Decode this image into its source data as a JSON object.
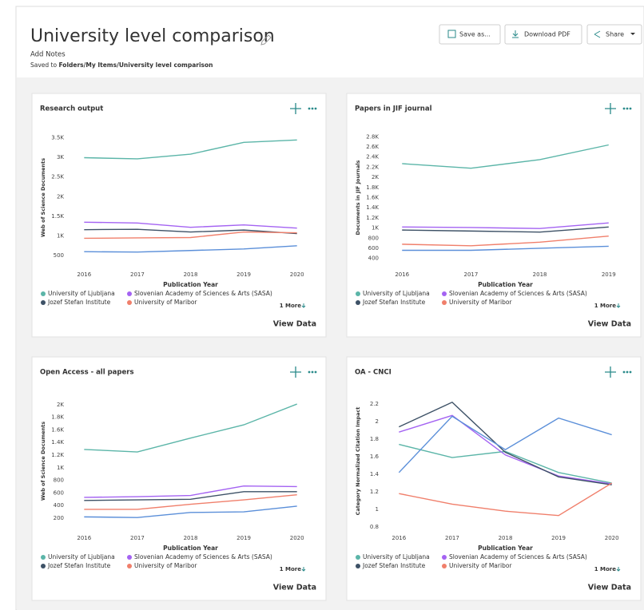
{
  "header": {
    "title": "University level comparison",
    "add_notes": "Add Notes",
    "saved_label": "Saved to",
    "saved_path": "Folders/My Items/University level comparison"
  },
  "buttons": [
    "Save as...",
    "Download PDF",
    "Share"
  ],
  "chart_data": [
    {
      "type": "line",
      "title": "Research output",
      "ylabel": "Web of Science Documents",
      "xlabel": "Publication Year",
      "x": [
        2016,
        2017,
        2018,
        2019,
        2020
      ],
      "xlim": [
        2015.8,
        2020.2
      ],
      "xticks": [
        2016,
        2017,
        2018,
        2019,
        2020
      ],
      "ylim": [
        300,
        3650
      ],
      "yticks": [
        500,
        {
          "value": 1000,
          "label": "1K"
        },
        {
          "value": 1500,
          "label": "1.5K"
        },
        {
          "value": 2000,
          "label": "2K"
        },
        {
          "value": 2500,
          "label": "2.5K"
        },
        {
          "value": 3000,
          "label": "3K"
        },
        {
          "value": 3500,
          "label": "3.5K"
        }
      ],
      "series": [
        {
          "name": "University of Ljubljana",
          "color": "#5bb5a8",
          "values": [
            2990,
            2960,
            3080,
            3380,
            3440
          ]
        },
        {
          "name": "Slovenian Academy of Sciences & Arts (SASA)",
          "color": "#a463f2",
          "values": [
            1350,
            1330,
            1220,
            1280,
            1200
          ]
        },
        {
          "name": "Jozef Stefan Institute",
          "color": "#3d5166",
          "values": [
            1160,
            1170,
            1100,
            1150,
            1060
          ]
        },
        {
          "name": "University of Maribor",
          "color": "#f07f6b",
          "values": [
            940,
            950,
            960,
            1100,
            1080
          ]
        },
        {
          "color": "#5b8fd9",
          "values": [
            600,
            590,
            630,
            670,
            750
          ]
        }
      ],
      "more_link": "1 More",
      "action": "View Data"
    },
    {
      "type": "line",
      "title": "Papers in JIF journal",
      "ylabel": "Documents in JIF Journals",
      "xlabel": "Publication Year",
      "x": [
        2016,
        2017,
        2018,
        2019
      ],
      "xlim": [
        2015.8,
        2019.2
      ],
      "xticks": [
        2016,
        2017,
        2018,
        2019
      ],
      "ylim": [
        300,
        2900
      ],
      "yticks": [
        400,
        600,
        800,
        {
          "value": 1000,
          "label": "1K"
        },
        {
          "value": 1200,
          "label": "1.2K"
        },
        {
          "value": 1400,
          "label": "1.4K"
        },
        {
          "value": 1600,
          "label": "1.6K"
        },
        {
          "value": 1800,
          "label": "1.8K"
        },
        {
          "value": 2000,
          "label": "2K"
        },
        {
          "value": 2200,
          "label": "2.2K"
        },
        {
          "value": 2400,
          "label": "2.4K"
        },
        {
          "value": 2600,
          "label": "2.6K"
        },
        {
          "value": 2800,
          "label": "2.8K"
        }
      ],
      "series": [
        {
          "name": "University of Ljubljana",
          "color": "#5bb5a8",
          "values": [
            2270,
            2180,
            2350,
            2640
          ]
        },
        {
          "name": "Slovenian Academy of Sciences & Arts (SASA)",
          "color": "#a463f2",
          "values": [
            1020,
            1010,
            990,
            1100
          ]
        },
        {
          "name": "Jozef Stefan Institute",
          "color": "#3d5166",
          "values": [
            960,
            940,
            920,
            1020
          ]
        },
        {
          "name": "University of Maribor",
          "color": "#f07f6b",
          "values": [
            680,
            650,
            720,
            840
          ]
        },
        {
          "color": "#5b8fd9",
          "values": [
            560,
            560,
            600,
            640
          ]
        }
      ],
      "more_link": "1 More",
      "action": "View Data"
    },
    {
      "type": "line",
      "title": "Open Access - all papers",
      "ylabel": "Web of Science Documents",
      "xlabel": "Publication Year",
      "x": [
        2016,
        2017,
        2018,
        2019,
        2020
      ],
      "xlim": [
        2015.8,
        2020.2
      ],
      "xticks": [
        2016,
        2017,
        2018,
        2019,
        2020
      ],
      "ylim": [
        60,
        2150
      ],
      "yticks": [
        200,
        400,
        600,
        800,
        {
          "value": 1000,
          "label": "1K"
        },
        {
          "value": 1200,
          "label": "1.2K"
        },
        {
          "value": 1400,
          "label": "1.4K"
        },
        {
          "value": 1600,
          "label": "1.6K"
        },
        {
          "value": 1800,
          "label": "1.8K"
        },
        {
          "value": 2000,
          "label": "2K"
        }
      ],
      "series": [
        {
          "name": "University of Ljubljana",
          "color": "#5bb5a8",
          "values": [
            1290,
            1250,
            1470,
            1680,
            2010
          ]
        },
        {
          "name": "Slovenian Academy of Sciences & Arts (SASA)",
          "color": "#a463f2",
          "values": [
            530,
            540,
            560,
            710,
            700
          ]
        },
        {
          "name": "Jozef Stefan Institute",
          "color": "#3d5166",
          "values": [
            480,
            490,
            500,
            620,
            620
          ]
        },
        {
          "name": "University of Maribor",
          "color": "#f07f6b",
          "values": [
            340,
            340,
            420,
            490,
            570
          ]
        },
        {
          "color": "#5b8fd9",
          "values": [
            220,
            210,
            290,
            300,
            390
          ]
        }
      ],
      "more_link": "1 More",
      "action": "View Data"
    },
    {
      "type": "line",
      "title": "OA - CNCI",
      "ylabel": "Category Normalized Citation Impact",
      "xlabel": "Publication Year",
      "x": [
        2016,
        2017,
        2018,
        2019,
        2020
      ],
      "xlim": [
        2015.8,
        2020.2
      ],
      "xticks": [
        2016,
        2017,
        2018,
        2019,
        2020
      ],
      "ylim": [
        0.8,
        2.3
      ],
      "yticks": [
        0.8,
        1,
        1.2,
        1.4,
        1.6,
        1.8,
        2,
        2.2
      ],
      "series": [
        {
          "name": "University of Ljubljana",
          "color": "#5bb5a8",
          "values": [
            1.74,
            1.59,
            1.66,
            1.42,
            1.3
          ]
        },
        {
          "name": "Slovenian Academy of Sciences & Arts (SASA)",
          "color": "#a463f2",
          "values": [
            1.88,
            2.07,
            1.62,
            1.38,
            1.29
          ]
        },
        {
          "name": "Jozef Stefan Institute",
          "color": "#3d5166",
          "values": [
            1.94,
            2.22,
            1.65,
            1.37,
            1.28
          ]
        },
        {
          "name": "University of Maribor",
          "color": "#f07f6b",
          "values": [
            1.18,
            1.06,
            0.98,
            0.93,
            1.3
          ]
        },
        {
          "color": "#5b8fd9",
          "values": [
            1.42,
            2.06,
            1.68,
            2.04,
            1.85
          ]
        }
      ],
      "more_link": "1 More",
      "action": "View Data"
    }
  ]
}
